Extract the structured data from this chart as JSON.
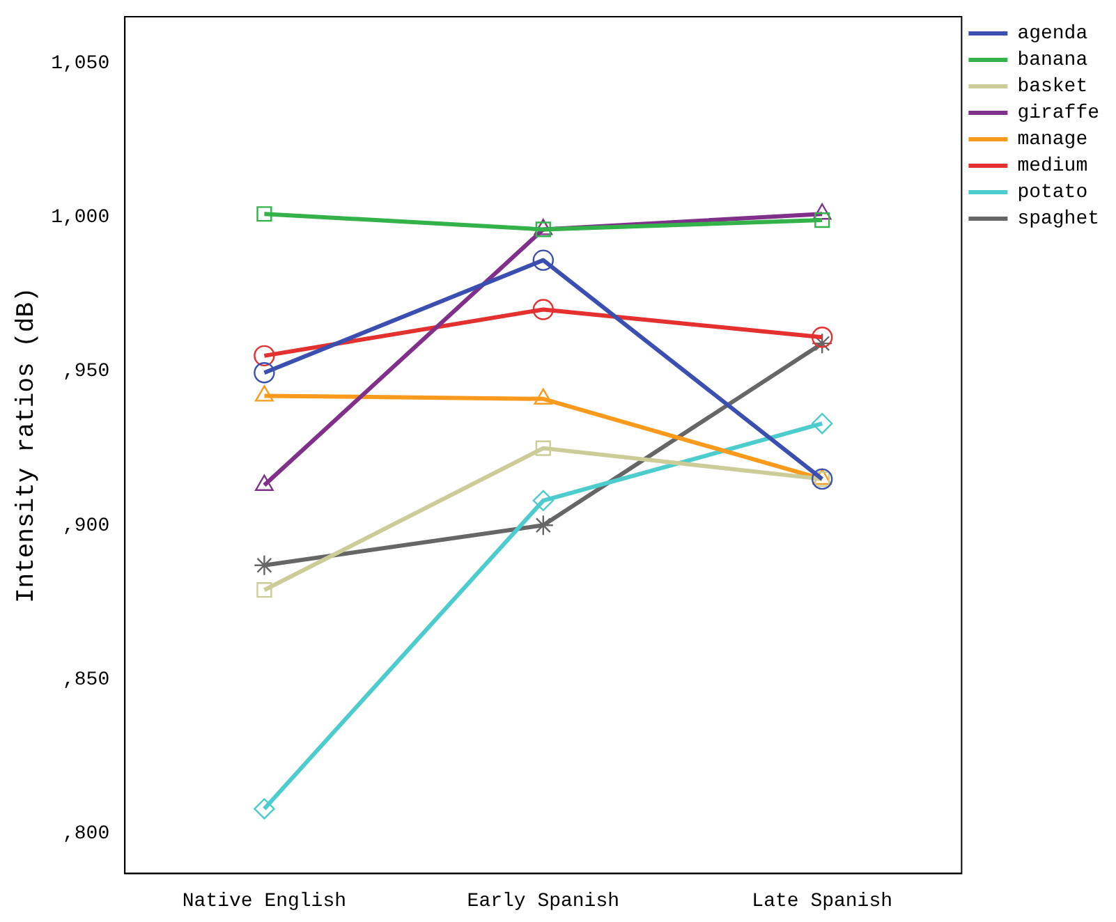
{
  "chart_data": {
    "type": "line",
    "ylabel": "Intensity ratios (dB)",
    "categories": [
      "Native English",
      "Early Spanish",
      "Late Spanish"
    ],
    "series": [
      {
        "name": "agenda",
        "color": "#3a4fb0",
        "marker": "circle",
        "values": [
          949.5,
          986,
          915
        ]
      },
      {
        "name": "banana",
        "color": "#33b24a",
        "marker": "square",
        "values": [
          1001,
          996,
          999
        ]
      },
      {
        "name": "basket",
        "color": "#cccc99",
        "marker": "square",
        "values": [
          879,
          925,
          915
        ]
      },
      {
        "name": "giraffe",
        "color": "#7f3089",
        "marker": "triangle",
        "values": [
          913,
          996,
          1001
        ]
      },
      {
        "name": "manage",
        "color": "#f99a1c",
        "marker": "triangle",
        "values": [
          942,
          941,
          915
        ]
      },
      {
        "name": "medium",
        "color": "#e4302f",
        "marker": "circle",
        "values": [
          955,
          970,
          961
        ]
      },
      {
        "name": "potato",
        "color": "#4ccccc",
        "marker": "diamond",
        "values": [
          808,
          908,
          933
        ]
      },
      {
        "name": "spaghet",
        "color": "#666666",
        "marker": "cross",
        "values": [
          887,
          900,
          959
        ]
      }
    ],
    "ylim": [
      787,
      1065
    ],
    "yticks": [
      {
        "value": 800,
        "label": ",800"
      },
      {
        "value": 850,
        "label": ",850"
      },
      {
        "value": 900,
        "label": ",900"
      },
      {
        "value": 950,
        "label": ",950"
      },
      {
        "value": 1000,
        "label": "1,000"
      },
      {
        "value": 1050,
        "label": "1,050"
      }
    ],
    "grid": false,
    "legend": "right",
    "line_style": "solid"
  }
}
